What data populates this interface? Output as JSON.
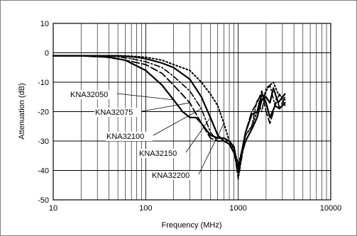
{
  "chart_data": {
    "type": "line",
    "title": "",
    "xlabel": "Frequency (MHz)",
    "ylabel": "Attenuation (dB)",
    "x_scale": "log",
    "xlim": [
      10,
      10000
    ],
    "ylim": [
      -50,
      10
    ],
    "x_ticks": [
      {
        "value": 10,
        "label": "10"
      },
      {
        "value": 100,
        "label": "100"
      },
      {
        "value": 1000,
        "label": "1000"
      },
      {
        "value": 10000,
        "label": "10000"
      }
    ],
    "y_ticks": [
      {
        "value": 10,
        "label": "10"
      },
      {
        "value": 0,
        "label": "0"
      },
      {
        "value": -10,
        "label": "-10"
      },
      {
        "value": -20,
        "label": "-20"
      },
      {
        "value": -30,
        "label": "-30"
      },
      {
        "value": -40,
        "label": "-40"
      },
      {
        "value": -50,
        "label": "-50"
      }
    ],
    "grid": true,
    "legend": "none",
    "series": [
      {
        "name": "KNA32050",
        "style": "solid",
        "points": [
          [
            10,
            -1
          ],
          [
            20,
            -1
          ],
          [
            40,
            -1.5
          ],
          [
            60,
            -2.5
          ],
          [
            100,
            -6
          ],
          [
            150,
            -11
          ],
          [
            200,
            -16
          ],
          [
            250,
            -20
          ],
          [
            300,
            -22
          ],
          [
            350,
            -22
          ],
          [
            400,
            -24
          ],
          [
            500,
            -28
          ],
          [
            600,
            -29
          ],
          [
            700,
            -29
          ],
          [
            800,
            -30
          ],
          [
            900,
            -32
          ],
          [
            1000,
            -40
          ],
          [
            1100,
            -33
          ],
          [
            1200,
            -27
          ],
          [
            1400,
            -21
          ],
          [
            1600,
            -20
          ],
          [
            1800,
            -14
          ],
          [
            2000,
            -17
          ],
          [
            2200,
            -22
          ],
          [
            2500,
            -18
          ],
          [
            2800,
            -19
          ],
          [
            3200,
            -17
          ]
        ]
      },
      {
        "name": "KNA32075",
        "style": "long-dash",
        "points": [
          [
            10,
            -1
          ],
          [
            30,
            -1
          ],
          [
            60,
            -2.5
          ],
          [
            100,
            -4
          ],
          [
            150,
            -7
          ],
          [
            200,
            -11
          ],
          [
            300,
            -17
          ],
          [
            400,
            -24
          ],
          [
            500,
            -29
          ],
          [
            600,
            -30
          ],
          [
            700,
            -30
          ],
          [
            800,
            -30
          ],
          [
            900,
            -32
          ],
          [
            1000,
            -42
          ],
          [
            1100,
            -34
          ],
          [
            1200,
            -27
          ],
          [
            1400,
            -20
          ],
          [
            1600,
            -17
          ],
          [
            1800,
            -13
          ],
          [
            2000,
            -20
          ],
          [
            2200,
            -24
          ],
          [
            2400,
            -20
          ],
          [
            2600,
            -15
          ],
          [
            2800,
            -19
          ],
          [
            3200,
            -15
          ]
        ]
      },
      {
        "name": "KNA32100",
        "style": "dash-dot",
        "points": [
          [
            10,
            -1
          ],
          [
            40,
            -1
          ],
          [
            70,
            -2
          ],
          [
            100,
            -3
          ],
          [
            150,
            -5
          ],
          [
            200,
            -8
          ],
          [
            300,
            -13
          ],
          [
            400,
            -19
          ],
          [
            500,
            -27
          ],
          [
            600,
            -30
          ],
          [
            700,
            -30
          ],
          [
            800,
            -31
          ],
          [
            900,
            -33
          ],
          [
            1000,
            -43
          ],
          [
            1100,
            -35
          ],
          [
            1200,
            -28
          ],
          [
            1400,
            -25
          ],
          [
            1600,
            -16
          ],
          [
            1800,
            -20
          ],
          [
            2000,
            -12
          ],
          [
            2200,
            -11
          ],
          [
            2500,
            -18
          ],
          [
            2800,
            -14
          ],
          [
            3200,
            -18
          ]
        ]
      },
      {
        "name": "KNA32150",
        "style": "solid",
        "points": [
          [
            10,
            -1
          ],
          [
            50,
            -1
          ],
          [
            80,
            -1.5
          ],
          [
            100,
            -2
          ],
          [
            150,
            -3.5
          ],
          [
            200,
            -5
          ],
          [
            300,
            -9
          ],
          [
            400,
            -15
          ],
          [
            500,
            -22
          ],
          [
            600,
            -28
          ],
          [
            700,
            -30
          ],
          [
            800,
            -31
          ],
          [
            900,
            -34
          ],
          [
            1000,
            -40
          ],
          [
            1100,
            -34
          ],
          [
            1200,
            -30
          ],
          [
            1400,
            -26
          ],
          [
            1600,
            -22
          ],
          [
            1800,
            -16
          ],
          [
            2000,
            -15
          ],
          [
            2200,
            -17
          ],
          [
            2400,
            -12
          ],
          [
            2700,
            -17
          ],
          [
            3200,
            -14
          ]
        ]
      },
      {
        "name": "KNA32200",
        "style": "dotted",
        "points": [
          [
            10,
            -1
          ],
          [
            60,
            -1
          ],
          [
            100,
            -1.5
          ],
          [
            150,
            -2.5
          ],
          [
            200,
            -4
          ],
          [
            300,
            -6
          ],
          [
            400,
            -10
          ],
          [
            500,
            -14
          ],
          [
            600,
            -18
          ],
          [
            700,
            -24
          ],
          [
            800,
            -30
          ],
          [
            900,
            -33
          ],
          [
            1000,
            -38
          ],
          [
            1100,
            -33
          ],
          [
            1200,
            -28
          ],
          [
            1400,
            -25
          ],
          [
            1600,
            -20
          ],
          [
            1800,
            -16
          ],
          [
            2000,
            -13
          ],
          [
            2200,
            -11
          ],
          [
            2400,
            -10
          ],
          [
            2700,
            -14
          ],
          [
            3200,
            -16
          ]
        ]
      }
    ],
    "annotations": [
      {
        "text": "KNA32050",
        "target": [
          200,
          -16
        ]
      },
      {
        "text": "KNA32075",
        "target": [
          300,
          -17
        ]
      },
      {
        "text": "KNA32100",
        "target": [
          400,
          -19
        ]
      },
      {
        "text": "KNA32150",
        "target": [
          500,
          -22
        ]
      },
      {
        "text": "KNA32200",
        "target": [
          700,
          -24
        ]
      }
    ]
  }
}
